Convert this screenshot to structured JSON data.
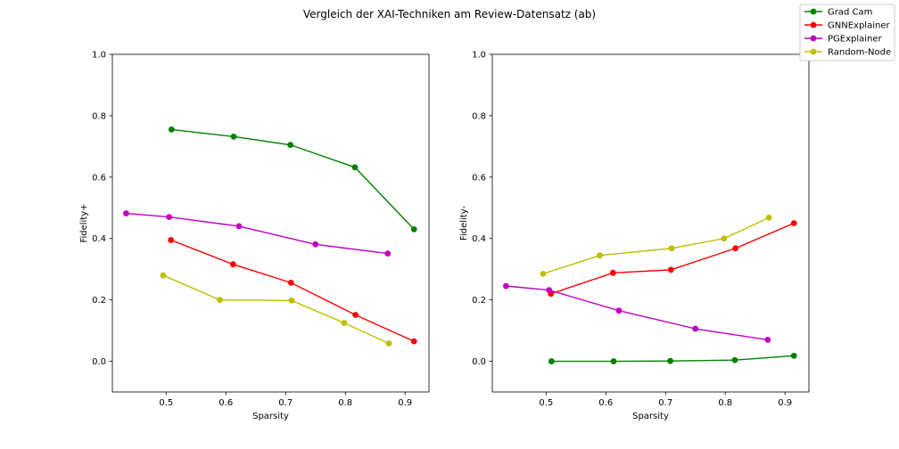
{
  "suptitle": "Vergleich der XAI-Techniken am Review-Datensatz (ab)",
  "legend": {
    "placement": "top-right",
    "entries": [
      {
        "label": "Grad Cam",
        "color": "#008000"
      },
      {
        "label": "GNNExplainer",
        "color": "#ff0000"
      },
      {
        "label": "PGExplainer",
        "color": "#bf00bf"
      },
      {
        "label": "Random-Node",
        "color": "#bfbf00"
      }
    ]
  },
  "chart_data": [
    {
      "type": "line",
      "xlabel": "Sparsity",
      "ylabel": "Fidelity+",
      "xlim": [
        0.41,
        0.94
      ],
      "ylim": [
        -0.1,
        1.0
      ],
      "xticks": [
        "0.5",
        "0.6",
        "0.7",
        "0.8",
        "0.9"
      ],
      "yticks": [
        "0.0",
        "0.2",
        "0.4",
        "0.6",
        "0.8",
        "1.0"
      ],
      "grid": false,
      "series": [
        {
          "name": "Grad Cam",
          "color": "#008000",
          "x": [
            0.509,
            0.613,
            0.708,
            0.816,
            0.915
          ],
          "y": [
            0.755,
            0.732,
            0.705,
            0.632,
            0.43
          ]
        },
        {
          "name": "GNNExplainer",
          "color": "#ff0000",
          "x": [
            0.508,
            0.612,
            0.709,
            0.817,
            0.915
          ],
          "y": [
            0.395,
            0.316,
            0.256,
            0.151,
            0.065
          ]
        },
        {
          "name": "PGExplainer",
          "color": "#bf00bf",
          "x": [
            0.433,
            0.505,
            0.622,
            0.75,
            0.871
          ],
          "y": [
            0.482,
            0.47,
            0.44,
            0.381,
            0.351
          ]
        },
        {
          "name": "Random-Node",
          "color": "#bfbf00",
          "x": [
            0.495,
            0.59,
            0.71,
            0.798,
            0.873
          ],
          "y": [
            0.28,
            0.2,
            0.198,
            0.125,
            0.058
          ]
        }
      ]
    },
    {
      "type": "line",
      "xlabel": "Sparsity",
      "ylabel": "Fidelity-",
      "xlim": [
        0.41,
        0.94
      ],
      "ylim": [
        -0.1,
        1.0
      ],
      "xticks": [
        "0.5",
        "0.6",
        "0.7",
        "0.8",
        "0.9"
      ],
      "yticks": [
        "0.0",
        "0.2",
        "0.4",
        "0.6",
        "0.8",
        "1.0"
      ],
      "grid": false,
      "series": [
        {
          "name": "Grad Cam",
          "color": "#008000",
          "x": [
            0.509,
            0.613,
            0.708,
            0.816,
            0.915
          ],
          "y": [
            0.0,
            0.0,
            0.001,
            0.004,
            0.018
          ]
        },
        {
          "name": "GNNExplainer",
          "color": "#ff0000",
          "x": [
            0.508,
            0.612,
            0.709,
            0.817,
            0.915
          ],
          "y": [
            0.22,
            0.288,
            0.298,
            0.368,
            0.45
          ]
        },
        {
          "name": "PGExplainer",
          "color": "#bf00bf",
          "x": [
            0.433,
            0.505,
            0.622,
            0.75,
            0.871
          ],
          "y": [
            0.245,
            0.232,
            0.165,
            0.106,
            0.07
          ]
        },
        {
          "name": "Random-Node",
          "color": "#bfbf00",
          "x": [
            0.495,
            0.59,
            0.71,
            0.798,
            0.873
          ],
          "y": [
            0.285,
            0.345,
            0.368,
            0.4,
            0.468
          ]
        }
      ]
    }
  ]
}
